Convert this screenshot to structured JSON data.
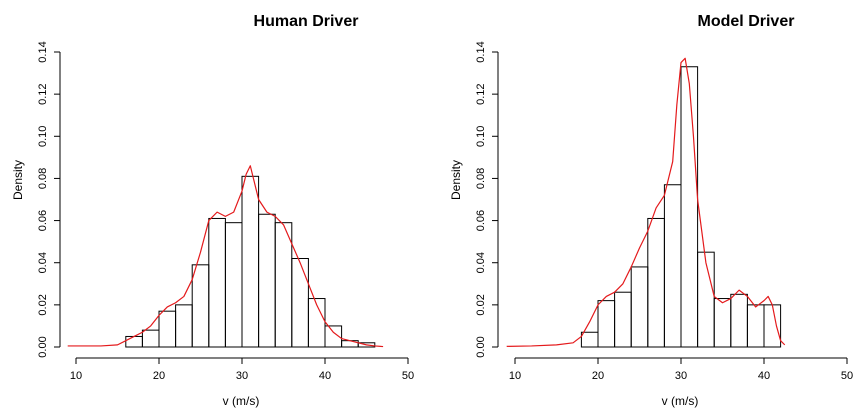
{
  "chart_data": [
    {
      "type": "histogram",
      "title": "Human Driver",
      "xlabel": "v (m/s)",
      "ylabel": "Density",
      "xlim": [
        10,
        50
      ],
      "ylim": [
        0,
        0.14
      ],
      "x_ticks": [
        "10",
        "20",
        "30",
        "40",
        "50"
      ],
      "y_ticks": [
        "0.00",
        "0.02",
        "0.04",
        "0.06",
        "0.08",
        "0.10",
        "0.12",
        "0.14"
      ],
      "bins": [
        {
          "x0": 16,
          "x1": 18,
          "density": 0.005
        },
        {
          "x0": 18,
          "x1": 20,
          "density": 0.008
        },
        {
          "x0": 20,
          "x1": 22,
          "density": 0.017
        },
        {
          "x0": 22,
          "x1": 24,
          "density": 0.02
        },
        {
          "x0": 24,
          "x1": 26,
          "density": 0.039
        },
        {
          "x0": 26,
          "x1": 28,
          "density": 0.061
        },
        {
          "x0": 28,
          "x1": 30,
          "density": 0.059
        },
        {
          "x0": 30,
          "x1": 32,
          "density": 0.081
        },
        {
          "x0": 32,
          "x1": 34,
          "density": 0.063
        },
        {
          "x0": 34,
          "x1": 36,
          "density": 0.059
        },
        {
          "x0": 36,
          "x1": 38,
          "density": 0.042
        },
        {
          "x0": 38,
          "x1": 40,
          "density": 0.023
        },
        {
          "x0": 40,
          "x1": 42,
          "density": 0.01
        },
        {
          "x0": 42,
          "x1": 44,
          "density": 0.003
        },
        {
          "x0": 44,
          "x1": 46,
          "density": 0.002
        }
      ],
      "density_curve": {
        "x": [
          9,
          11,
          13,
          15,
          16,
          17,
          18,
          19,
          20,
          21,
          22,
          23,
          24,
          25,
          26,
          27,
          28,
          29,
          30,
          30.5,
          31,
          32,
          33,
          34,
          35,
          36,
          37,
          38,
          39,
          40,
          41,
          42,
          43,
          44,
          45,
          46,
          47
        ],
        "y": [
          0.0005,
          0.0005,
          0.0005,
          0.001,
          0.003,
          0.005,
          0.007,
          0.01,
          0.015,
          0.019,
          0.021,
          0.024,
          0.032,
          0.045,
          0.06,
          0.064,
          0.062,
          0.064,
          0.074,
          0.082,
          0.086,
          0.07,
          0.064,
          0.062,
          0.058,
          0.049,
          0.04,
          0.03,
          0.02,
          0.012,
          0.007,
          0.004,
          0.003,
          0.002,
          0.001,
          0.0005,
          0.0002
        ]
      },
      "colors": {
        "bars": "#000000",
        "curve": "#e41a1c"
      }
    },
    {
      "type": "histogram",
      "title": "Model Driver",
      "xlabel": "v (m/s)",
      "ylabel": "Density",
      "xlim": [
        10,
        50
      ],
      "ylim": [
        0,
        0.14
      ],
      "x_ticks": [
        "10",
        "20",
        "30",
        "40",
        "50"
      ],
      "y_ticks": [
        "0.00",
        "0.02",
        "0.04",
        "0.06",
        "0.08",
        "0.10",
        "0.12",
        "0.14"
      ],
      "bins": [
        {
          "x0": 18,
          "x1": 20,
          "density": 0.007
        },
        {
          "x0": 20,
          "x1": 22,
          "density": 0.022
        },
        {
          "x0": 22,
          "x1": 24,
          "density": 0.026
        },
        {
          "x0": 24,
          "x1": 26,
          "density": 0.038
        },
        {
          "x0": 26,
          "x1": 28,
          "density": 0.061
        },
        {
          "x0": 28,
          "x1": 30,
          "density": 0.077
        },
        {
          "x0": 30,
          "x1": 32,
          "density": 0.133
        },
        {
          "x0": 32,
          "x1": 34,
          "density": 0.045
        },
        {
          "x0": 34,
          "x1": 36,
          "density": 0.023
        },
        {
          "x0": 36,
          "x1": 38,
          "density": 0.025
        },
        {
          "x0": 38,
          "x1": 40,
          "density": 0.02
        },
        {
          "x0": 40,
          "x1": 42,
          "density": 0.02
        }
      ],
      "density_curve": {
        "x": [
          9,
          12,
          15,
          17,
          18,
          19,
          20,
          21,
          22,
          23,
          24,
          25,
          26,
          27,
          28,
          29,
          29.5,
          30,
          30.5,
          31,
          31.5,
          32,
          33,
          34,
          35,
          36,
          37,
          38,
          39,
          40,
          40.5,
          41,
          41.5,
          42,
          42.5
        ],
        "y": [
          0.0003,
          0.0005,
          0.001,
          0.002,
          0.005,
          0.012,
          0.02,
          0.024,
          0.026,
          0.03,
          0.038,
          0.047,
          0.055,
          0.066,
          0.072,
          0.088,
          0.115,
          0.135,
          0.137,
          0.125,
          0.1,
          0.07,
          0.04,
          0.024,
          0.021,
          0.023,
          0.027,
          0.024,
          0.019,
          0.022,
          0.024,
          0.02,
          0.01,
          0.003,
          0.001
        ]
      },
      "colors": {
        "bars": "#000000",
        "curve": "#e41a1c"
      }
    }
  ]
}
